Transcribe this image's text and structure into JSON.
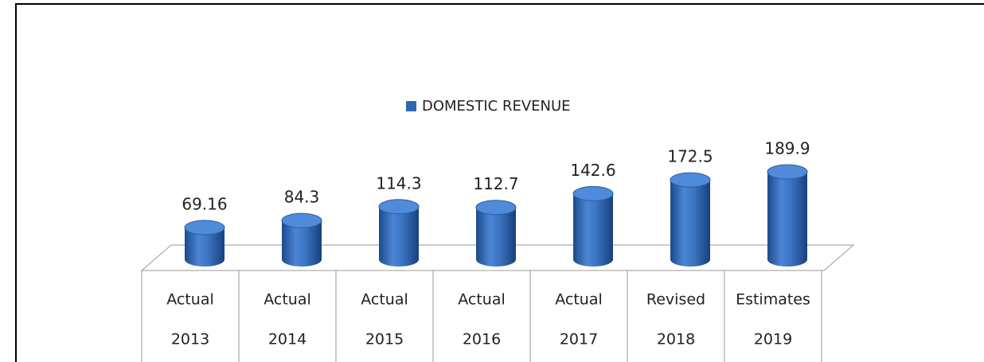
{
  "chart_data": {
    "type": "bar3d",
    "categories": [
      [
        "Actual",
        "2013"
      ],
      [
        "Actual",
        "2014"
      ],
      [
        "Actual",
        "2015"
      ],
      [
        "Actual",
        "2016"
      ],
      [
        "Actual",
        "2017"
      ],
      [
        "Revised",
        "2018"
      ],
      [
        "Estimates",
        "2019"
      ]
    ],
    "series": [
      {
        "name": "DOMESTIC REVENUE",
        "color": "#2f67b3",
        "values": [
          69.16,
          84.3,
          114.3,
          112.7,
          142.6,
          172.5,
          189.9
        ]
      }
    ]
  }
}
